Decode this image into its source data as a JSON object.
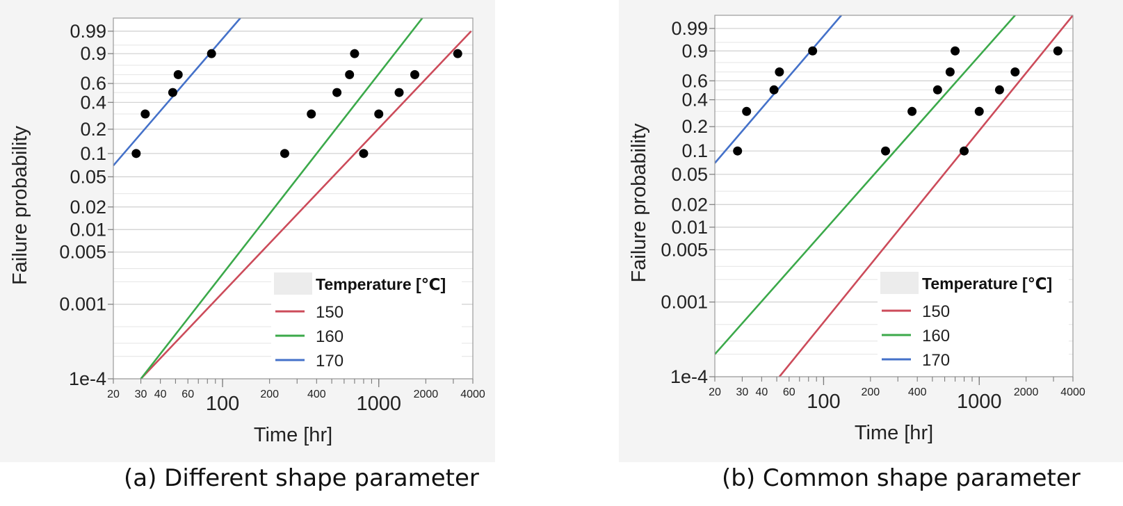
{
  "chart_data": [
    {
      "type": "scatter",
      "xscale": "log",
      "yscale": "weibull",
      "xlabel": "Time [hr]",
      "ylabel": "Failure probability",
      "xlim": [
        20,
        4000
      ],
      "ylim": [
        0.0001,
        0.999
      ],
      "grid": "horizontal",
      "x_ticks": [
        {
          "v": 20,
          "label": "20",
          "major": false
        },
        {
          "v": 30,
          "label": "30",
          "major": false
        },
        {
          "v": 40,
          "label": "40",
          "major": false
        },
        {
          "v": 60,
          "label": "60",
          "major": false
        },
        {
          "v": 100,
          "label": "100",
          "major": true
        },
        {
          "v": 200,
          "label": "200",
          "major": false
        },
        {
          "v": 400,
          "label": "400",
          "major": false
        },
        {
          "v": 1000,
          "label": "1000",
          "major": true
        },
        {
          "v": 2000,
          "label": "2000",
          "major": false
        },
        {
          "v": 4000,
          "label": "4000",
          "major": false
        }
      ],
      "y_ticks": [
        {
          "v": 0.99,
          "label": "0.99"
        },
        {
          "v": 0.9,
          "label": "0.9"
        },
        {
          "v": 0.6,
          "label": "0.6"
        },
        {
          "v": 0.4,
          "label": "0.4"
        },
        {
          "v": 0.2,
          "label": "0.2"
        },
        {
          "v": 0.1,
          "label": "0.1"
        },
        {
          "v": 0.05,
          "label": "0.05"
        },
        {
          "v": 0.02,
          "label": "0.02"
        },
        {
          "v": 0.01,
          "label": "0.01"
        },
        {
          "v": 0.005,
          "label": "0.005"
        },
        {
          "v": 0.001,
          "label": "0.001"
        },
        {
          "v": 0.0001,
          "label": "1e-4"
        }
      ],
      "legend": {
        "title": "Temperature [℃]",
        "position": "bottom-right"
      },
      "points": [
        {
          "x": 28,
          "y": 0.1
        },
        {
          "x": 32,
          "y": 0.3
        },
        {
          "x": 48,
          "y": 0.5
        },
        {
          "x": 52,
          "y": 0.7
        },
        {
          "x": 85,
          "y": 0.9
        },
        {
          "x": 250,
          "y": 0.1
        },
        {
          "x": 370,
          "y": 0.3
        },
        {
          "x": 540,
          "y": 0.5
        },
        {
          "x": 650,
          "y": 0.7
        },
        {
          "x": 700,
          "y": 0.9
        },
        {
          "x": 800,
          "y": 0.1
        },
        {
          "x": 1000,
          "y": 0.3
        },
        {
          "x": 1350,
          "y": 0.5
        },
        {
          "x": 1700,
          "y": 0.7
        },
        {
          "x": 3200,
          "y": 0.9
        }
      ],
      "series": [
        {
          "name": "150",
          "color": "#cc4b5a",
          "line": [
            [
              30,
              0.0001
            ],
            [
              3900,
              0.99
            ]
          ]
        },
        {
          "name": "160",
          "color": "#3ba94a",
          "line": [
            [
              30,
              0.0001
            ],
            [
              1900,
              0.999
            ]
          ]
        },
        {
          "name": "170",
          "color": "#4471c9",
          "line": [
            [
              20,
              0.07
            ],
            [
              130,
              0.999
            ]
          ]
        }
      ],
      "caption": "(a) Different shape parameter"
    },
    {
      "type": "scatter",
      "xscale": "log",
      "yscale": "weibull",
      "xlabel": "Time [hr]",
      "ylabel": "Failure probability",
      "xlim": [
        20,
        4000
      ],
      "ylim": [
        0.0001,
        0.999
      ],
      "grid": "horizontal",
      "x_ticks": [
        {
          "v": 20,
          "label": "20",
          "major": false
        },
        {
          "v": 30,
          "label": "30",
          "major": false
        },
        {
          "v": 40,
          "label": "40",
          "major": false
        },
        {
          "v": 60,
          "label": "60",
          "major": false
        },
        {
          "v": 100,
          "label": "100",
          "major": true
        },
        {
          "v": 200,
          "label": "200",
          "major": false
        },
        {
          "v": 400,
          "label": "400",
          "major": false
        },
        {
          "v": 1000,
          "label": "1000",
          "major": true
        },
        {
          "v": 2000,
          "label": "2000",
          "major": false
        },
        {
          "v": 4000,
          "label": "4000",
          "major": false
        }
      ],
      "y_ticks": [
        {
          "v": 0.99,
          "label": "0.99"
        },
        {
          "v": 0.9,
          "label": "0.9"
        },
        {
          "v": 0.6,
          "label": "0.6"
        },
        {
          "v": 0.4,
          "label": "0.4"
        },
        {
          "v": 0.2,
          "label": "0.2"
        },
        {
          "v": 0.1,
          "label": "0.1"
        },
        {
          "v": 0.05,
          "label": "0.05"
        },
        {
          "v": 0.02,
          "label": "0.02"
        },
        {
          "v": 0.01,
          "label": "0.01"
        },
        {
          "v": 0.005,
          "label": "0.005"
        },
        {
          "v": 0.001,
          "label": "0.001"
        },
        {
          "v": 0.0001,
          "label": "1e-4"
        }
      ],
      "legend": {
        "title": "Temperature [℃]",
        "position": "bottom-right"
      },
      "points": [
        {
          "x": 28,
          "y": 0.1
        },
        {
          "x": 32,
          "y": 0.3
        },
        {
          "x": 48,
          "y": 0.5
        },
        {
          "x": 52,
          "y": 0.7
        },
        {
          "x": 85,
          "y": 0.9
        },
        {
          "x": 250,
          "y": 0.1
        },
        {
          "x": 370,
          "y": 0.3
        },
        {
          "x": 540,
          "y": 0.5
        },
        {
          "x": 650,
          "y": 0.7
        },
        {
          "x": 700,
          "y": 0.9
        },
        {
          "x": 800,
          "y": 0.1
        },
        {
          "x": 1000,
          "y": 0.3
        },
        {
          "x": 1350,
          "y": 0.5
        },
        {
          "x": 1700,
          "y": 0.7
        },
        {
          "x": 3200,
          "y": 0.9
        }
      ],
      "series": [
        {
          "name": "150",
          "color": "#cc4b5a",
          "line": [
            [
              52,
              0.0001
            ],
            [
              4000,
              0.999
            ]
          ]
        },
        {
          "name": "160",
          "color": "#3ba94a",
          "line": [
            [
              20,
              0.0002
            ],
            [
              1700,
              0.999
            ]
          ]
        },
        {
          "name": "170",
          "color": "#4471c9",
          "line": [
            [
              20,
              0.07
            ],
            [
              130,
              0.999
            ]
          ]
        }
      ],
      "caption": "(b) Common shape parameter"
    }
  ]
}
